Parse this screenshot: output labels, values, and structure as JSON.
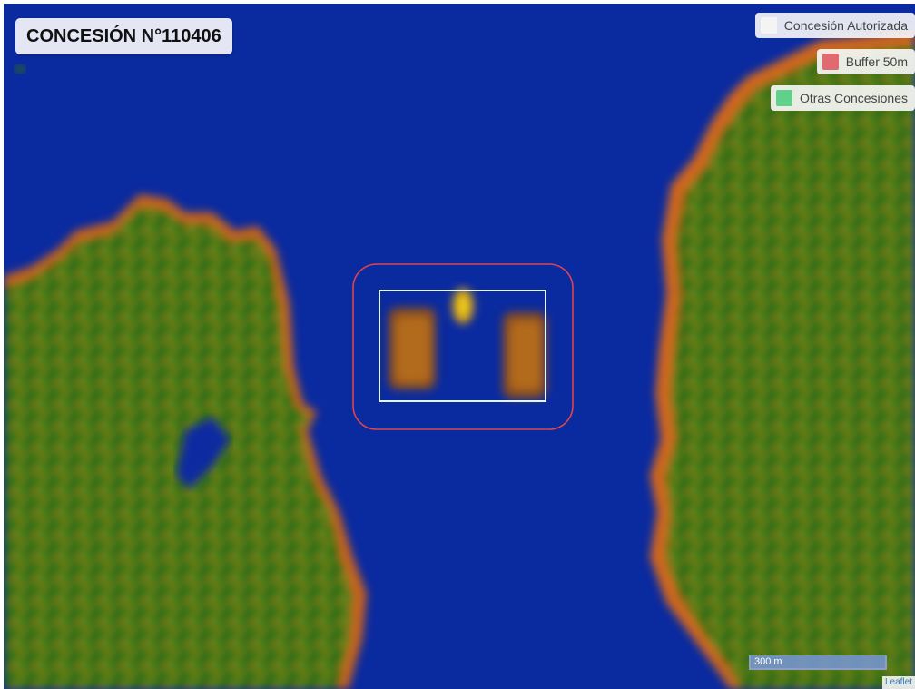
{
  "title": "CONCESIÓN N°110406",
  "legend": [
    {
      "label": "Concesión Autorizada",
      "color": "#f4f4f4"
    },
    {
      "label": "Buffer 50m",
      "color": "#e06a70"
    },
    {
      "label": "Otras Concesiones",
      "color": "#5fd18a"
    }
  ],
  "scale_label": "300 m",
  "attribution": "Leaflet",
  "colors": {
    "water": "#0a2aa0",
    "land_base": "#2f6a18",
    "land_edge": "#d2661c",
    "concession_outline": "#dff7ff",
    "buffer_outline": "#e0444e"
  }
}
